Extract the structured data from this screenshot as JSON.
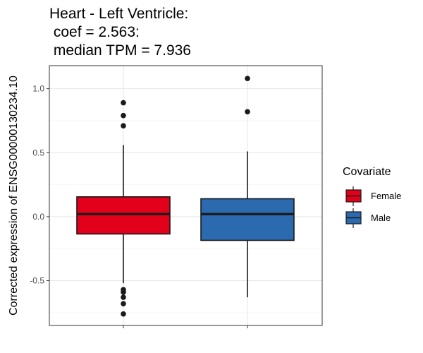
{
  "chart_data": {
    "type": "box",
    "title_lines": [
      "Heart - Left Ventricle:",
      " coef = 2.563:",
      " median TPM = 7.936"
    ],
    "ylabel": "Corrected expression of ENSG00000130234.10",
    "xlabel": "",
    "ylim": [
      -0.85,
      1.18
    ],
    "yticks": [
      -0.5,
      0.0,
      0.5,
      1.0
    ],
    "ytick_labels": [
      "-0.5",
      "0.0",
      "0.5",
      "1.0"
    ],
    "grid": true,
    "legend": {
      "title": "Covariate",
      "position": "right"
    },
    "series": [
      {
        "name": "Female",
        "color": "#e3001b",
        "whisker_low": -0.52,
        "q1": -0.135,
        "median": 0.02,
        "q3": 0.155,
        "whisker_high": 0.56,
        "outliers": [
          0.89,
          0.79,
          0.71,
          -0.57,
          -0.59,
          -0.63,
          -0.68,
          -0.76
        ]
      },
      {
        "name": "Male",
        "color": "#2b6aaf",
        "whisker_low": -0.63,
        "q1": -0.185,
        "median": 0.02,
        "q3": 0.14,
        "whisker_high": 0.51,
        "outliers": [
          1.08,
          0.82
        ]
      }
    ]
  }
}
